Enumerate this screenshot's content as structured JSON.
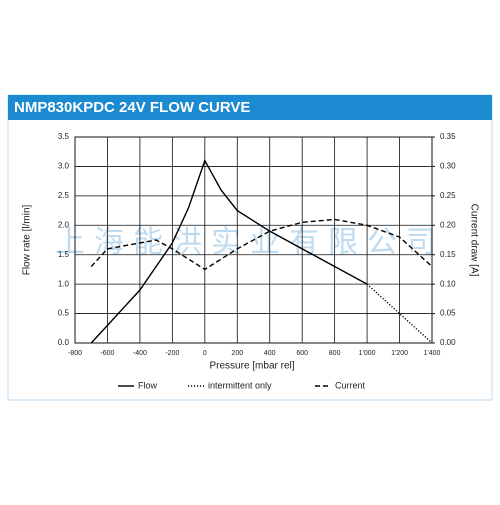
{
  "chart_data": {
    "type": "line",
    "title": "NMP830KPDC 24V FLOW CURVE",
    "x_label": "Pressure [mbar rel]",
    "y_label": "Flow rate [l/min]",
    "y2_label": "Current draw [A]",
    "watermark": "上海能洪实业有限公司",
    "xlim": [
      -800,
      1400
    ],
    "xticks": [
      -800,
      -600,
      -400,
      -200,
      0,
      200,
      400,
      600,
      800,
      {
        "value": 1000,
        "label": "1'000"
      },
      {
        "value": 1200,
        "label": "1'200"
      },
      {
        "value": 1400,
        "label": "1'400"
      }
    ],
    "ylim": [
      0,
      3.5
    ],
    "yticks": [
      {
        "value": 0,
        "label": "0.0"
      },
      0.5,
      {
        "value": 1,
        "label": "1.0"
      },
      1.5,
      {
        "value": 2,
        "label": "2.0"
      },
      2.5,
      {
        "value": 3,
        "label": "3.0"
      },
      3.5
    ],
    "y2lim": [
      0,
      0.35
    ],
    "y2ticks": [
      {
        "value": 0,
        "label": "0.00"
      },
      {
        "value": 0.05,
        "label": "0.05"
      },
      {
        "value": 0.1,
        "label": "0.10"
      },
      {
        "value": 0.15,
        "label": "0.15"
      },
      {
        "value": 0.2,
        "label": "0.20"
      },
      {
        "value": 0.25,
        "label": "0.25"
      },
      {
        "value": 0.3,
        "label": "0.30"
      },
      {
        "value": 0.35,
        "label": "0.35"
      }
    ],
    "grid": true,
    "legend": "bottom",
    "series": [
      {
        "name": "Flow",
        "color": "#000000",
        "dash": "solid",
        "x": [
          -700,
          -600,
          -400,
          -200,
          -100,
          0,
          100,
          200,
          400,
          600,
          800,
          1000
        ],
        "values": [
          0,
          0.3,
          0.9,
          1.7,
          2.3,
          3.1,
          2.6,
          2.25,
          1.9,
          1.6,
          1.3,
          1.0
        ]
      },
      {
        "name": "intermittent only",
        "color": "#000000",
        "dash": "dotted",
        "x": [
          1000,
          1200,
          1400
        ],
        "values": [
          1.0,
          0.5,
          0
        ]
      },
      {
        "name": "Current",
        "color": "#000000",
        "dash": "dashed",
        "axis": "y2",
        "x": [
          -700,
          -600,
          -400,
          -300,
          -200,
          0,
          200,
          400,
          600,
          800,
          1000,
          1200,
          1400
        ],
        "values": [
          0.13,
          0.16,
          0.17,
          0.175,
          0.16,
          0.125,
          0.16,
          0.19,
          0.205,
          0.21,
          0.2,
          0.18,
          0.13
        ]
      }
    ]
  }
}
